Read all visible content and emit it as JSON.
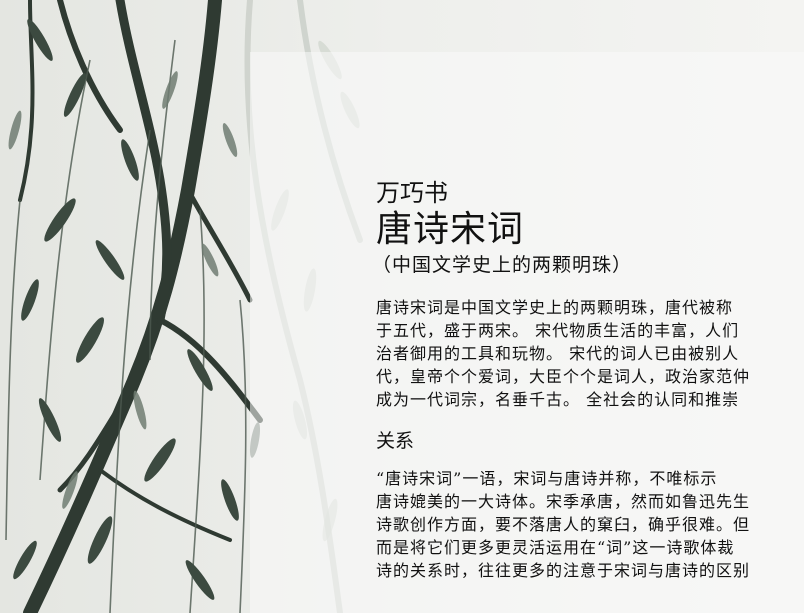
{
  "article": {
    "author": "万巧书",
    "title": "唐诗宋词",
    "subtitle": "（中国文学史上的两颗明珠）",
    "intro_lines": [
      "唐诗宋词是中国文学史上的两颗明珠，唐代被称",
      "于五代，盛于两宋。 宋代物质生活的丰富，人们",
      "治者御用的工具和玩物。 宋代的词人已由被别人",
      "代，皇帝个个爱词，大臣个个是词人，政治家范仲",
      "成为一代词宗，名垂千古。 全社会的认同和推崇"
    ],
    "section_heading": "关系",
    "relation_lines": [
      "“唐诗宋词”一语，宋词与唐诗并称，不唯标示",
      "唐诗媲美的一大诗体。宋季承唐，然而如鲁迅先生",
      "诗歌创作方面，要不落唐人的窠臼，确乎很难。但",
      "而是将它们更多更灵活运用在“词”这一诗歌体裁",
      "诗的关系时，往往更多的注意于宋词与唐诗的区别"
    ]
  }
}
